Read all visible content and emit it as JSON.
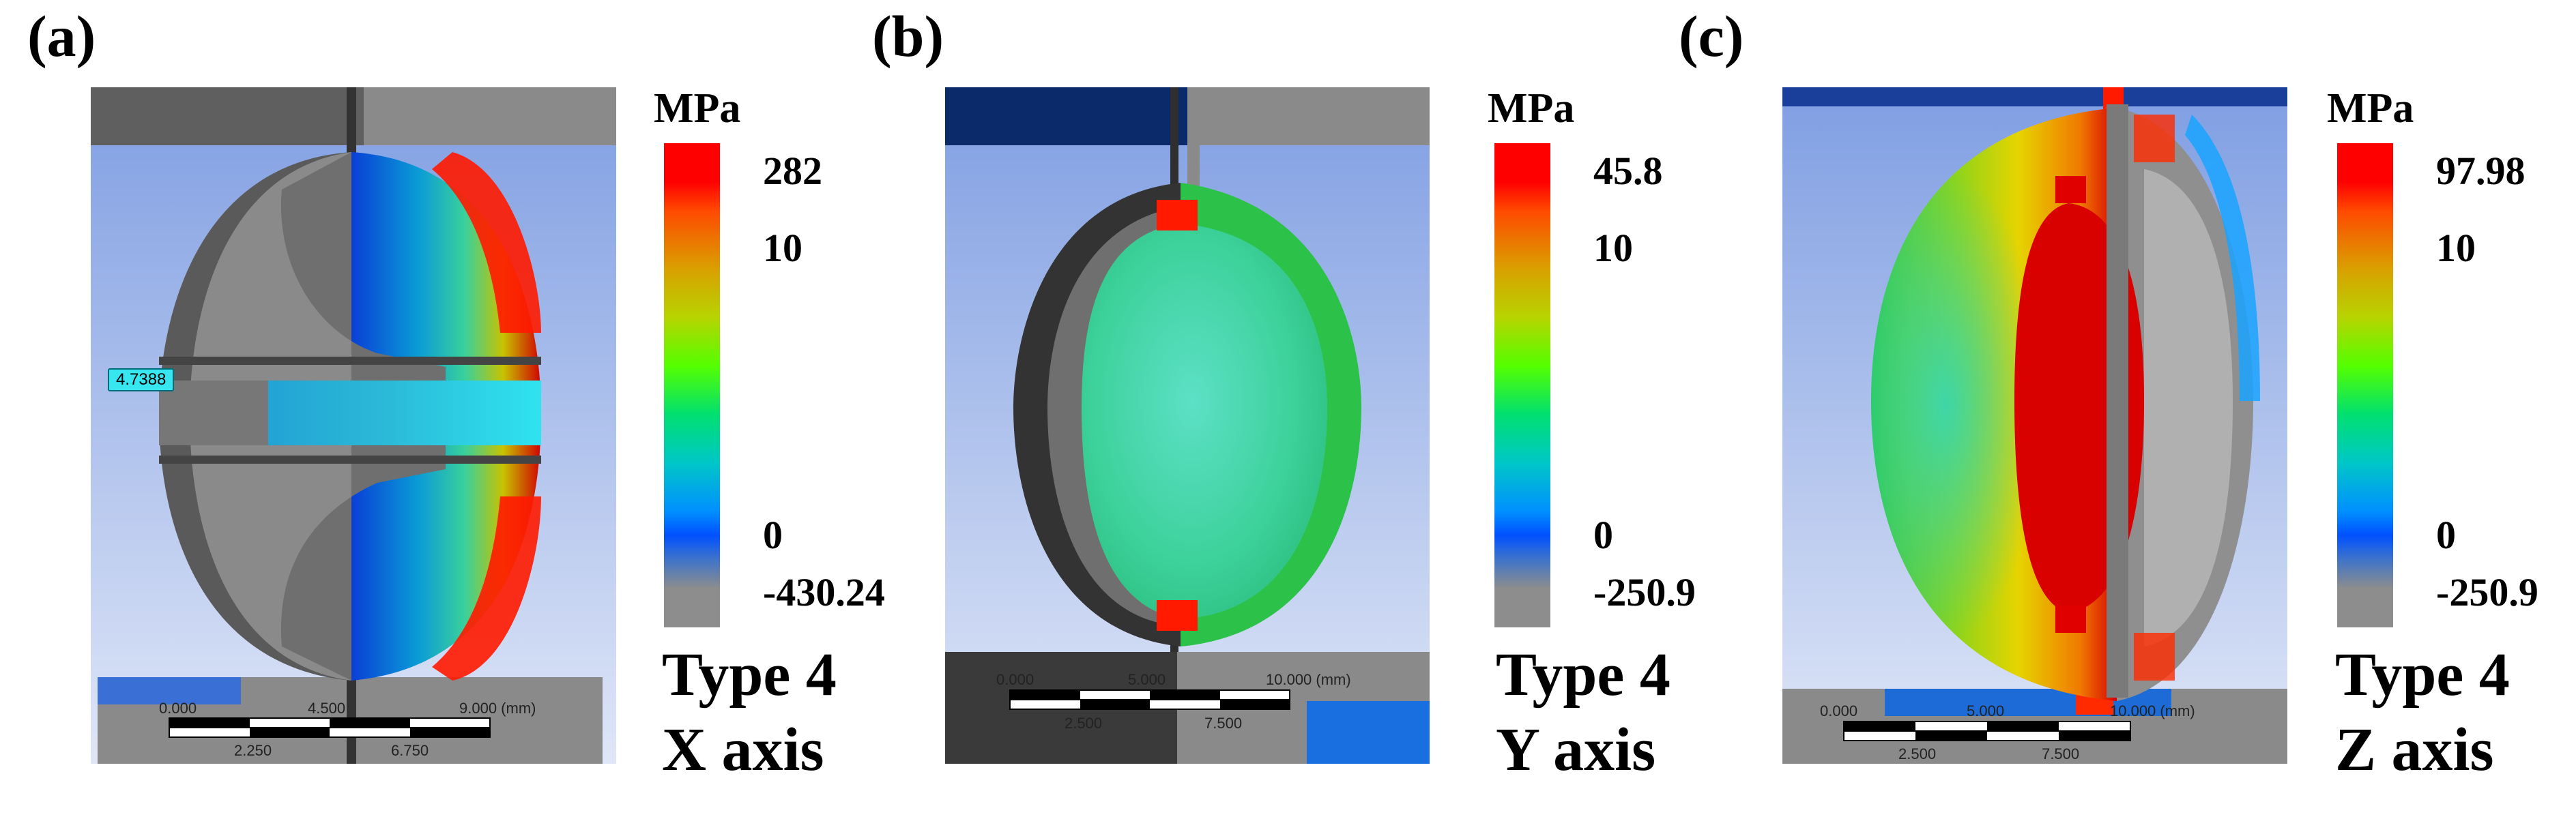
{
  "panels": [
    {
      "letter": "(a)",
      "unit": "MPa",
      "ticks": [
        "282",
        "10",
        "0",
        "-430.24"
      ],
      "type_label": "Type 4",
      "axis_label": "X axis",
      "probe_value": "4.7388",
      "scale": {
        "top": [
          "0.000",
          "4.500",
          "9.000 (mm)"
        ],
        "bottom": [
          "2.250",
          "6.750"
        ]
      }
    },
    {
      "letter": "(b)",
      "unit": "MPa",
      "ticks": [
        "45.8",
        "10",
        "0",
        "-250.9"
      ],
      "type_label": "Type 4",
      "axis_label": "Y axis",
      "scale": {
        "top": [
          "0.000",
          "5.000",
          "10.000 (mm)"
        ],
        "bottom": [
          "2.500",
          "7.500"
        ]
      }
    },
    {
      "letter": "(c)",
      "unit": "MPa",
      "ticks": [
        "97.98",
        "10",
        "0",
        "-250.9"
      ],
      "type_label": "Type 4",
      "axis_label": "Z axis",
      "scale": {
        "top": [
          "0.000",
          "5.000",
          "10.000 (mm)"
        ],
        "bottom": [
          "2.500",
          "7.500"
        ]
      }
    }
  ],
  "colors": {
    "background_top": "#7f9ee2",
    "background_bottom": "#dfe6f7",
    "plate_gray": "#8a8a8a",
    "dark_gray": "#3a3a3a",
    "high_red": "#ff0000",
    "mid_green": "#33ff22",
    "low_blue": "#0050ff",
    "negative_gray": "#8d8d8d"
  }
}
